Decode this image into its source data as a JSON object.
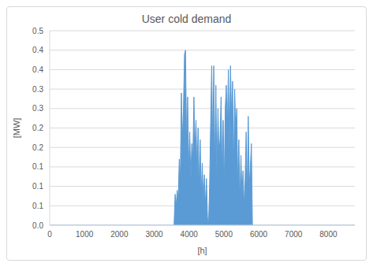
{
  "chart_data": {
    "type": "area",
    "title": "User cold demand",
    "x_label": "[h]",
    "y_label": "[MW]",
    "color": "#5b9bd5",
    "grid": true,
    "xlim": [
      0,
      8760
    ],
    "xticks": [
      0,
      1000,
      2000,
      3000,
      4000,
      5000,
      6000,
      7000,
      8000
    ],
    "ylim": [
      0,
      0.5
    ],
    "yticks": [
      {
        "value": 0,
        "label": "0.0"
      },
      {
        "value": 0.05,
        "label": "0.1"
      },
      0.1,
      {
        "value": 0.15,
        "label": "0.1"
      },
      0.2,
      {
        "value": 0.25,
        "label": "0.2"
      },
      0.3,
      {
        "value": 0.35,
        "label": "0.3"
      },
      0.4,
      {
        "value": 0.45,
        "label": "0.4"
      },
      0.5
    ],
    "x": [
      0,
      3570,
      3600,
      3630,
      3660,
      3690,
      3720,
      3750,
      3780,
      3810,
      3840,
      3870,
      3900,
      3930,
      3960,
      3990,
      4020,
      4050,
      4080,
      4110,
      4140,
      4170,
      4200,
      4230,
      4260,
      4290,
      4320,
      4350,
      4380,
      4410,
      4440,
      4470,
      4500,
      4530,
      4560,
      4590,
      4620,
      4650,
      4680,
      4710,
      4740,
      4770,
      4800,
      4830,
      4860,
      4890,
      4920,
      4950,
      4980,
      5010,
      5040,
      5070,
      5100,
      5130,
      5160,
      5190,
      5220,
      5250,
      5280,
      5310,
      5340,
      5370,
      5400,
      5430,
      5460,
      5490,
      5520,
      5550,
      5580,
      5610,
      5640,
      5670,
      5700,
      5730,
      5760,
      5790,
      5820,
      8760
    ],
    "values": [
      0,
      0,
      0.08,
      0.05,
      0.09,
      0.07,
      0.17,
      0.12,
      0.34,
      0.22,
      0.3,
      0.44,
      0.45,
      0.2,
      0.33,
      0.15,
      0.24,
      0.12,
      0.21,
      0.17,
      0.33,
      0.2,
      0.27,
      0.13,
      0.25,
      0.1,
      0.22,
      0.08,
      0.16,
      0.06,
      0.13,
      0.05,
      0.12,
      0.02,
      0,
      0.1,
      0.26,
      0.41,
      0.2,
      0.41,
      0.15,
      0.36,
      0.12,
      0.3,
      0.18,
      0.22,
      0.33,
      0.14,
      0.27,
      0.1,
      0.3,
      0.36,
      0.25,
      0.4,
      0.2,
      0.41,
      0.28,
      0.37,
      0.14,
      0.35,
      0.24,
      0.3,
      0.1,
      0.22,
      0.06,
      0.18,
      0.08,
      0.14,
      0.05,
      0.12,
      0.24,
      0.08,
      0.28,
      0.1,
      0.15,
      0.21,
      0,
      0
    ]
  }
}
